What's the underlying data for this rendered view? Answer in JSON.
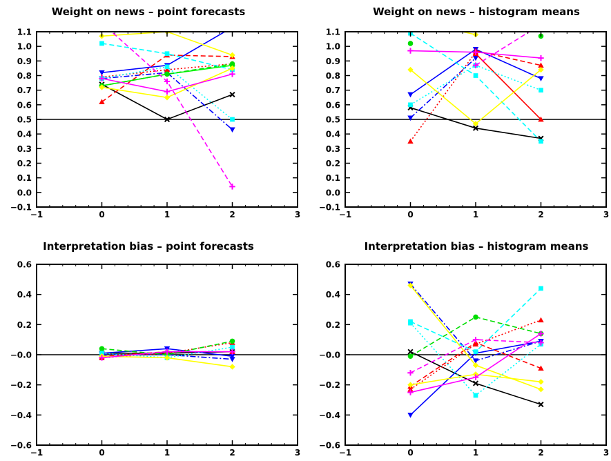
{
  "chart_data": [
    {
      "type": "line",
      "title": "Weight on news – point forecasts",
      "xlim": [
        -1,
        3
      ],
      "ylim": [
        -0.1,
        1.1
      ],
      "xticks": [
        "−1",
        "0",
        "1",
        "2",
        "3"
      ],
      "yticks": [
        "−0.1",
        "0.0",
        "0.1",
        "0.2",
        "0.3",
        "0.4",
        "0.5",
        "0.6",
        "0.7",
        "0.8",
        "0.9",
        "1.0",
        "1.1"
      ],
      "xtick_values": [
        -1,
        0,
        1,
        2,
        3
      ],
      "ytick_values": [
        -0.1,
        0,
        0.1,
        0.2,
        0.3,
        0.4,
        0.5,
        0.6,
        0.7,
        0.8,
        0.9,
        1.0,
        1.1
      ],
      "reference_line": 0.5,
      "x": [
        0,
        1,
        2
      ],
      "series": [
        {
          "color": "#000000",
          "dash": "solid",
          "marker": "x",
          "values": [
            0.74,
            0.5,
            0.67
          ]
        },
        {
          "color": "#0000ff",
          "dash": "dashdot",
          "marker": "triangle-down",
          "values": [
            0.78,
            0.82,
            0.43
          ]
        },
        {
          "color": "#0000ff",
          "dash": "solid",
          "marker": "triangle-down",
          "values": [
            0.82,
            0.87,
            1.13
          ]
        },
        {
          "color": "#ff0000",
          "dash": "dashed",
          "marker": "triangle-up",
          "values": [
            0.62,
            0.94,
            0.93
          ]
        },
        {
          "color": "#ff0000",
          "dash": "dotted",
          "marker": "triangle-up",
          "values": [
            0.79,
            0.84,
            0.88
          ]
        },
        {
          "color": "#00ff00",
          "dash": "solid",
          "marker": "circle",
          "values": [
            0.73,
            0.81,
            0.87
          ]
        },
        {
          "color": "#00dd00",
          "dash": "dashed",
          "marker": "circle",
          "values": [
            0.73,
            0.81,
            0.88
          ]
        },
        {
          "color": "#00ffff",
          "dash": "dashed",
          "marker": "square",
          "values": [
            1.02,
            0.95,
            0.84
          ]
        },
        {
          "color": "#00ffff",
          "dash": "dotted",
          "marker": "square",
          "values": [
            0.78,
            0.86,
            0.5
          ]
        },
        {
          "color": "#ffff00",
          "dash": "solid",
          "marker": "diamond",
          "values": [
            1.07,
            1.1,
            0.94
          ]
        },
        {
          "color": "#ffff00",
          "dash": "solid",
          "marker": "diamond",
          "values": [
            0.72,
            0.65,
            0.85
          ]
        },
        {
          "color": "#ff00ff",
          "dash": "dashed",
          "marker": "plus",
          "values": [
            1.16,
            0.76,
            0.04
          ]
        },
        {
          "color": "#ff00ff",
          "dash": "solid",
          "marker": "plus",
          "values": [
            0.78,
            0.69,
            0.81
          ]
        }
      ]
    },
    {
      "type": "line",
      "title": "Weight on news – histogram means",
      "xlim": [
        -1,
        3
      ],
      "ylim": [
        -0.1,
        1.1
      ],
      "xticks": [
        "−1",
        "0",
        "1",
        "2",
        "3"
      ],
      "yticks": [
        "−0.1",
        "0.0",
        "0.1",
        "0.2",
        "0.3",
        "0.4",
        "0.5",
        "0.6",
        "0.7",
        "0.8",
        "0.9",
        "1.0",
        "1.1"
      ],
      "xtick_values": [
        -1,
        0,
        1,
        2,
        3
      ],
      "ytick_values": [
        -0.1,
        0,
        0.1,
        0.2,
        0.3,
        0.4,
        0.5,
        0.6,
        0.7,
        0.8,
        0.9,
        1.0,
        1.1
      ],
      "reference_line": 0.5,
      "x": [
        0,
        1,
        2
      ],
      "series": [
        {
          "color": "#000000",
          "dash": "solid",
          "marker": "x",
          "values": [
            0.58,
            0.44,
            0.37
          ]
        },
        {
          "color": "#0000ff",
          "dash": "dashdot",
          "marker": "triangle-down",
          "values": [
            0.51,
            0.92,
            null
          ]
        },
        {
          "color": "#0000ff",
          "dash": "solid",
          "marker": "triangle-down",
          "values": [
            0.67,
            0.98,
            0.78
          ]
        },
        {
          "color": "#ff0000",
          "dash": "dashed",
          "marker": "triangle-up",
          "values": [
            null,
            0.97,
            0.87
          ]
        },
        {
          "color": "#ff0000",
          "dash": "dotted",
          "marker": "triangle-up",
          "values": [
            0.35,
            0.96,
            null
          ]
        },
        {
          "color": "#ff0000",
          "dash": "solid",
          "marker": "triangle-up",
          "values": [
            null,
            0.95,
            0.5
          ]
        },
        {
          "color": "#00dd00",
          "dash": "solid",
          "marker": "circle",
          "values": [
            1.02,
            null,
            1.07
          ]
        },
        {
          "color": "#00ffff",
          "dash": "dashed",
          "marker": "square",
          "values": [
            1.09,
            0.8,
            0.35
          ]
        },
        {
          "color": "#00ffff",
          "dash": "dotted",
          "marker": "square",
          "values": [
            0.6,
            0.87,
            0.7
          ]
        },
        {
          "color": "#ffff00",
          "dash": "solid",
          "marker": "diamond",
          "values": [
            0.84,
            0.47,
            0.84
          ]
        },
        {
          "color": "#ffff00",
          "dash": "solid",
          "marker": "diamond",
          "values": [
            1.18,
            1.08,
            null
          ]
        },
        {
          "color": "#ff00ff",
          "dash": "solid",
          "marker": "plus",
          "values": [
            0.97,
            0.96,
            0.92
          ]
        },
        {
          "color": "#ff00ff",
          "dash": "dashed",
          "marker": "plus",
          "values": [
            null,
            0.87,
            1.15
          ]
        }
      ]
    },
    {
      "type": "line",
      "title": "Interpretation bias – point forecasts",
      "xlim": [
        -1,
        3
      ],
      "ylim": [
        -0.6,
        0.6
      ],
      "xticks": [
        "−1",
        "0",
        "1",
        "2",
        "3"
      ],
      "yticks": [
        "−0.6",
        "−0.4",
        "−0.2",
        "−0.0",
        "0.2",
        "0.4",
        "0.6"
      ],
      "xtick_values": [
        -1,
        0,
        1,
        2,
        3
      ],
      "ytick_values": [
        -0.6,
        -0.4,
        -0.2,
        0,
        0.2,
        0.4,
        0.6
      ],
      "reference_line": 0,
      "x": [
        0,
        1,
        2
      ],
      "series": [
        {
          "color": "#000000",
          "dash": "solid",
          "marker": "x",
          "values": [
            0.01,
            0.01,
            0.02
          ]
        },
        {
          "color": "#0000ff",
          "dash": "dashdot",
          "marker": "triangle-down",
          "values": [
            0.0,
            0.0,
            -0.03
          ]
        },
        {
          "color": "#0000ff",
          "dash": "solid",
          "marker": "triangle-down",
          "values": [
            0.01,
            0.04,
            -0.01
          ]
        },
        {
          "color": "#ff0000",
          "dash": "dashed",
          "marker": "triangle-up",
          "values": [
            -0.01,
            0.02,
            0.02
          ]
        },
        {
          "color": "#ff0000",
          "dash": "dotted",
          "marker": "triangle-up",
          "values": [
            -0.02,
            0.01,
            0.08
          ]
        },
        {
          "color": "#00dd00",
          "dash": "dashed",
          "marker": "circle",
          "values": [
            0.04,
            0.0,
            0.09
          ]
        },
        {
          "color": "#00ffff",
          "dash": "dotted",
          "marker": "square",
          "values": [
            0.01,
            -0.02,
            0.05
          ]
        },
        {
          "color": "#ffff00",
          "dash": "solid",
          "marker": "diamond",
          "values": [
            -0.01,
            -0.02,
            -0.08
          ]
        },
        {
          "color": "#ff00ff",
          "dash": "solid",
          "marker": "plus",
          "values": [
            -0.02,
            0.02,
            0.02
          ]
        }
      ]
    },
    {
      "type": "line",
      "title": "Interpretation bias – histogram means",
      "xlim": [
        -1,
        3
      ],
      "ylim": [
        -0.6,
        0.6
      ],
      "xticks": [
        "−1",
        "0",
        "1",
        "2",
        "3"
      ],
      "yticks": [
        "−0.6",
        "−0.4",
        "−0.2",
        "−0.0",
        "0.2",
        "0.4",
        "0.6"
      ],
      "xtick_values": [
        -1,
        0,
        1,
        2,
        3
      ],
      "ytick_values": [
        -0.6,
        -0.4,
        -0.2,
        0,
        0.2,
        0.4,
        0.6
      ],
      "reference_line": 0,
      "x": [
        0,
        1,
        2
      ],
      "series": [
        {
          "color": "#000000",
          "dash": "solid",
          "marker": "x",
          "values": [
            0.02,
            -0.19,
            -0.33
          ]
        },
        {
          "color": "#0000ff",
          "dash": "dashdot",
          "marker": "triangle-down",
          "values": [
            0.47,
            -0.04,
            0.09
          ]
        },
        {
          "color": "#0000ff",
          "dash": "solid",
          "marker": "triangle-down",
          "values": [
            -0.4,
            0.01,
            0.09
          ]
        },
        {
          "color": "#ff0000",
          "dash": "dashed",
          "marker": "triangle-up",
          "values": [
            -0.21,
            0.08,
            -0.09
          ]
        },
        {
          "color": "#ff0000",
          "dash": "dotted",
          "marker": "triangle-up",
          "values": [
            -0.23,
            0.07,
            0.23
          ]
        },
        {
          "color": "#00dd00",
          "dash": "dashed",
          "marker": "circle",
          "values": [
            -0.01,
            0.25,
            0.14
          ]
        },
        {
          "color": "#00ffff",
          "dash": "dashed",
          "marker": "square",
          "values": [
            0.22,
            0.02,
            0.44
          ]
        },
        {
          "color": "#00ffff",
          "dash": "dotted",
          "marker": "square",
          "values": [
            0.21,
            -0.27,
            0.07
          ]
        },
        {
          "color": "#ffff00",
          "dash": "solid",
          "marker": "diamond",
          "values": [
            0.46,
            -0.07,
            -0.23
          ]
        },
        {
          "color": "#ffff00",
          "dash": "solid",
          "marker": "diamond",
          "values": [
            -0.2,
            -0.13,
            -0.18
          ]
        },
        {
          "color": "#ff00ff",
          "dash": "dashed",
          "marker": "plus",
          "values": [
            -0.12,
            0.1,
            0.08
          ]
        },
        {
          "color": "#ff00ff",
          "dash": "solid",
          "marker": "plus",
          "values": [
            -0.25,
            -0.15,
            0.14
          ]
        }
      ]
    }
  ]
}
